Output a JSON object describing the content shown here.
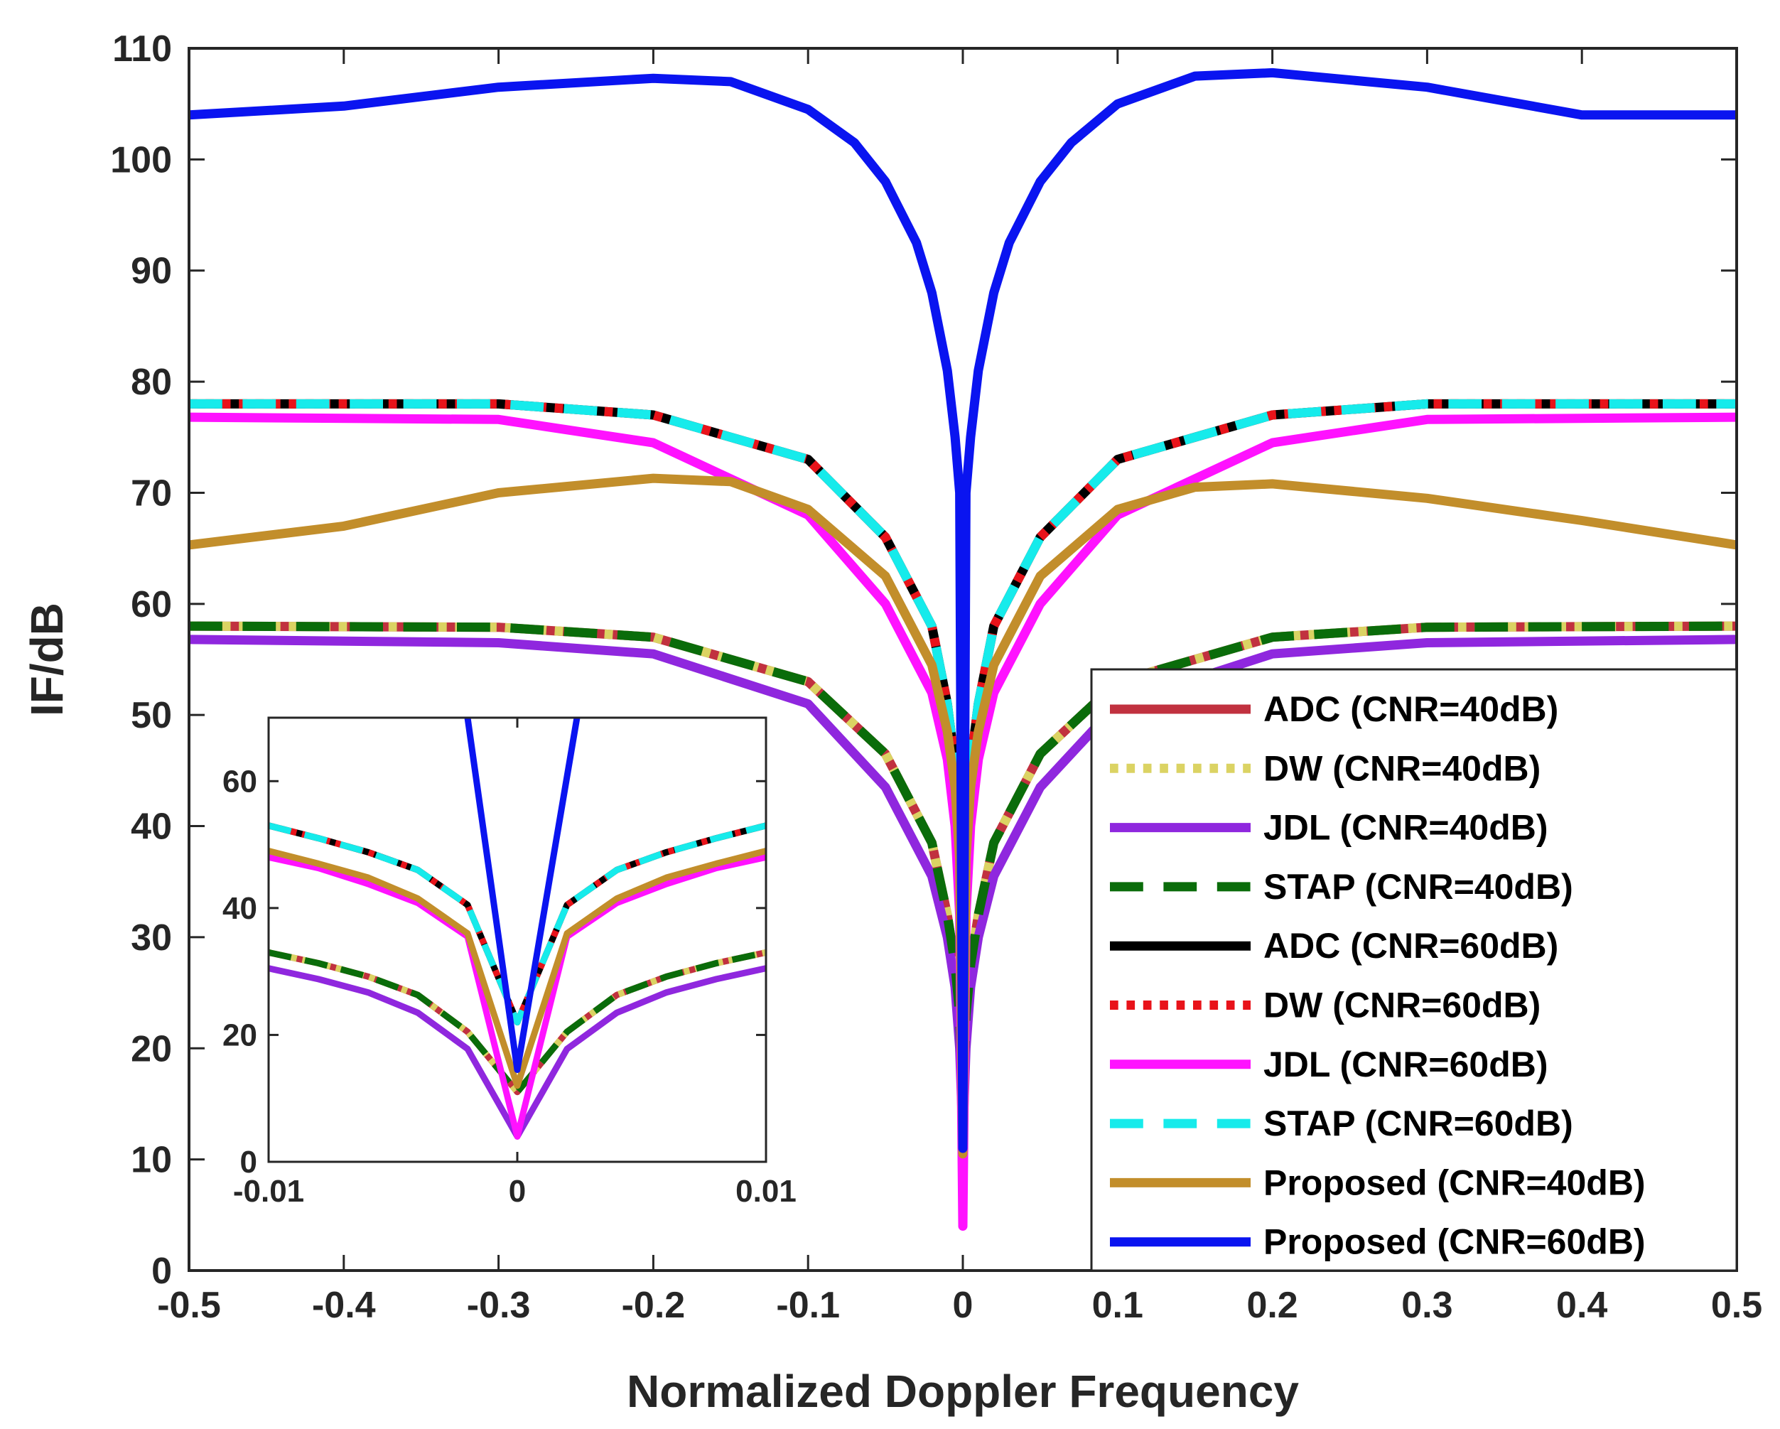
{
  "chart_data": [
    {
      "type": "line",
      "role": "main",
      "xlabel": "Normalized Doppler Frequency",
      "ylabel": "IF/dB",
      "xlim": [
        -0.5,
        0.5
      ],
      "ylim": [
        0,
        110
      ],
      "xticks": [
        -0.5,
        -0.4,
        -0.3,
        -0.2,
        -0.1,
        0,
        0.1,
        0.2,
        0.3,
        0.4,
        0.5
      ],
      "xtick_labels": [
        "-0.5",
        "-0.4",
        "-0.3",
        "-0.2",
        "-0.1",
        "0",
        "0.1",
        "0.2",
        "0.3",
        "0.4",
        "0.5"
      ],
      "yticks": [
        0,
        10,
        20,
        30,
        40,
        50,
        60,
        70,
        80,
        90,
        100,
        110
      ],
      "ytick_labels": [
        "0",
        "10",
        "20",
        "30",
        "40",
        "50",
        "60",
        "70",
        "80",
        "90",
        "100",
        "110"
      ],
      "legend_position": "bottom-right",
      "series": [
        {
          "name": "ADC (CNR=40dB)",
          "color": "#c1313f",
          "dash": "solid",
          "x": [
            -0.5,
            -0.3,
            -0.2,
            -0.1,
            -0.05,
            -0.02,
            -0.01,
            -0.005,
            -0.002,
            0,
            0.002,
            0.005,
            0.01,
            0.02,
            0.05,
            0.1,
            0.2,
            0.3,
            0.5
          ],
          "y": [
            58,
            57.9,
            57,
            53,
            46.5,
            38.5,
            32,
            27.5,
            23,
            15,
            23,
            27.5,
            32,
            38.5,
            46.5,
            53,
            57,
            57.9,
            58
          ]
        },
        {
          "name": "DW (CNR=40dB)",
          "color": "#dbd363",
          "dash": "dot",
          "x": [
            -0.5,
            -0.3,
            -0.2,
            -0.1,
            -0.05,
            -0.02,
            -0.01,
            -0.005,
            -0.002,
            0,
            0.002,
            0.005,
            0.01,
            0.02,
            0.05,
            0.1,
            0.2,
            0.3,
            0.5
          ],
          "y": [
            58,
            57.9,
            57,
            53,
            46.5,
            38.5,
            32,
            27.5,
            23,
            15,
            23,
            27.5,
            32,
            38.5,
            46.5,
            53,
            57,
            57.9,
            58
          ]
        },
        {
          "name": "JDL (CNR=40dB)",
          "color": "#8f27de",
          "dash": "solid",
          "x": [
            -0.5,
            -0.3,
            -0.2,
            -0.1,
            -0.05,
            -0.02,
            -0.01,
            -0.005,
            -0.002,
            0,
            0.002,
            0.005,
            0.01,
            0.02,
            0.05,
            0.1,
            0.2,
            0.3,
            0.5
          ],
          "y": [
            56.8,
            56.5,
            55.5,
            51,
            43.5,
            35.5,
            30,
            25.5,
            20,
            12,
            20,
            25.5,
            30,
            35.5,
            43.5,
            51,
            55.5,
            56.5,
            56.8
          ]
        },
        {
          "name": "STAP (CNR=40dB)",
          "color": "#0a6c0a",
          "dash": "dash",
          "x": [
            -0.5,
            -0.3,
            -0.2,
            -0.1,
            -0.05,
            -0.02,
            -0.01,
            -0.005,
            -0.002,
            0,
            0.002,
            0.005,
            0.01,
            0.02,
            0.05,
            0.1,
            0.2,
            0.3,
            0.5
          ],
          "y": [
            58,
            57.9,
            57,
            53,
            46.5,
            38.5,
            32,
            27.5,
            23,
            15,
            23,
            27.5,
            32,
            38.5,
            46.5,
            53,
            57,
            57.9,
            58
          ]
        },
        {
          "name": "ADC (CNR=60dB)",
          "color": "#000000",
          "dash": "solid",
          "x": [
            -0.5,
            -0.3,
            -0.2,
            -0.1,
            -0.05,
            -0.02,
            -0.01,
            -0.005,
            -0.002,
            0,
            0.002,
            0.005,
            0.01,
            0.02,
            0.05,
            0.1,
            0.2,
            0.3,
            0.5
          ],
          "y": [
            78,
            78,
            77,
            73,
            66,
            58,
            51,
            45.5,
            40,
            24,
            40,
            45.5,
            51,
            58,
            66,
            73,
            77,
            78,
            78
          ]
        },
        {
          "name": "DW (CNR=60dB)",
          "color": "#e8131a",
          "dash": "dot",
          "x": [
            -0.5,
            -0.3,
            -0.2,
            -0.1,
            -0.05,
            -0.02,
            -0.01,
            -0.005,
            -0.002,
            0,
            0.002,
            0.005,
            0.01,
            0.02,
            0.05,
            0.1,
            0.2,
            0.3,
            0.5
          ],
          "y": [
            78,
            78,
            77,
            73,
            66,
            58,
            51,
            45.5,
            40,
            24,
            40,
            45.5,
            51,
            58,
            66,
            73,
            77,
            78,
            78
          ]
        },
        {
          "name": "JDL (CNR=60dB)",
          "color": "#ff12ff",
          "dash": "solid",
          "x": [
            -0.5,
            -0.3,
            -0.2,
            -0.1,
            -0.05,
            -0.02,
            -0.01,
            -0.005,
            -0.002,
            0,
            0.002,
            0.005,
            0.01,
            0.02,
            0.05,
            0.1,
            0.2,
            0.3,
            0.5
          ],
          "y": [
            76.8,
            76.6,
            74.5,
            68,
            60,
            52,
            46,
            40,
            32,
            4,
            32,
            40,
            46,
            52,
            60,
            68,
            74.5,
            76.6,
            76.8
          ]
        },
        {
          "name": "STAP (CNR=60dB)",
          "color": "#16ebeb",
          "dash": "dash",
          "x": [
            -0.5,
            -0.3,
            -0.2,
            -0.1,
            -0.05,
            -0.02,
            -0.01,
            -0.005,
            -0.002,
            0,
            0.002,
            0.005,
            0.01,
            0.02,
            0.05,
            0.1,
            0.2,
            0.3,
            0.5
          ],
          "y": [
            78,
            78,
            77,
            73,
            66,
            58,
            51,
            45.5,
            40,
            24,
            40,
            45.5,
            51,
            58,
            66,
            73,
            77,
            78,
            78
          ]
        },
        {
          "name": "Proposed (CNR=40dB)",
          "color": "#c28e2b",
          "dash": "solid",
          "x": [
            -0.5,
            -0.4,
            -0.3,
            -0.2,
            -0.15,
            -0.1,
            -0.05,
            -0.02,
            -0.01,
            -0.005,
            -0.002,
            0,
            0.002,
            0.005,
            0.01,
            0.02,
            0.05,
            0.1,
            0.15,
            0.2,
            0.3,
            0.4,
            0.5
          ],
          "y": [
            65.3,
            67,
            70,
            71.3,
            71,
            68.5,
            62.5,
            54.5,
            48.5,
            43.5,
            37,
            10.5,
            37,
            43.5,
            48.5,
            54.5,
            62.5,
            68.5,
            70.5,
            70.8,
            69.5,
            67.5,
            65.3
          ]
        },
        {
          "name": "Proposed (CNR=60dB)",
          "color": "#0a14f0",
          "dash": "solid",
          "x": [
            -0.5,
            -0.4,
            -0.3,
            -0.2,
            -0.15,
            -0.1,
            -0.07,
            -0.05,
            -0.03,
            -0.02,
            -0.01,
            -0.005,
            -0.002,
            0,
            0.002,
            0.005,
            0.01,
            0.02,
            0.03,
            0.05,
            0.07,
            0.1,
            0.15,
            0.2,
            0.3,
            0.4,
            0.5
          ],
          "y": [
            104,
            104.8,
            106.5,
            107.3,
            107,
            104.5,
            101.5,
            98,
            92.5,
            88,
            81,
            75,
            70,
            11,
            70,
            75,
            81,
            88,
            92.5,
            98,
            101.5,
            105,
            107.5,
            107.8,
            106.5,
            104,
            104
          ]
        }
      ]
    },
    {
      "type": "line",
      "role": "inset",
      "xlim": [
        -0.01,
        0.01
      ],
      "ylim": [
        0,
        70
      ],
      "xticks": [
        -0.01,
        0,
        0.01
      ],
      "xtick_labels": [
        "-0.01",
        "0",
        "0.01"
      ],
      "yticks": [
        0,
        20,
        40,
        60
      ],
      "ytick_labels": [
        "0",
        "20",
        "40",
        "60"
      ],
      "series": [
        {
          "name": "ADC (CNR=40dB)",
          "x": [
            -0.01,
            -0.008,
            -0.006,
            -0.004,
            -0.002,
            0,
            0.002,
            0.004,
            0.006,
            0.008,
            0.01
          ],
          "y": [
            33,
            31.3,
            29.2,
            26.3,
            20.5,
            11,
            20.5,
            26.3,
            29.2,
            31.3,
            33
          ]
        },
        {
          "name": "DW (CNR=40dB)",
          "x": [
            -0.01,
            -0.008,
            -0.006,
            -0.004,
            -0.002,
            0,
            0.002,
            0.004,
            0.006,
            0.008,
            0.01
          ],
          "y": [
            33,
            31.3,
            29.2,
            26.3,
            20.5,
            11,
            20.5,
            26.3,
            29.2,
            31.3,
            33
          ]
        },
        {
          "name": "JDL (CNR=40dB)",
          "x": [
            -0.01,
            -0.008,
            -0.006,
            -0.004,
            -0.002,
            0,
            0.002,
            0.004,
            0.006,
            0.008,
            0.01
          ],
          "y": [
            30.5,
            28.8,
            26.7,
            23.5,
            17.8,
            4,
            17.8,
            23.5,
            26.7,
            28.8,
            30.5
          ]
        },
        {
          "name": "STAP (CNR=40dB)",
          "x": [
            -0.01,
            -0.008,
            -0.006,
            -0.004,
            -0.002,
            0,
            0.002,
            0.004,
            0.006,
            0.008,
            0.01
          ],
          "y": [
            33,
            31.3,
            29.2,
            26.3,
            20.5,
            11,
            20.5,
            26.3,
            29.2,
            31.3,
            33
          ]
        },
        {
          "name": "ADC (CNR=60dB)",
          "x": [
            -0.01,
            -0.008,
            -0.006,
            -0.004,
            -0.002,
            0,
            0.002,
            0.004,
            0.006,
            0.008,
            0.01
          ],
          "y": [
            53,
            51,
            48.8,
            46,
            40.5,
            22,
            40.5,
            46,
            48.8,
            51,
            53
          ]
        },
        {
          "name": "DW (CNR=60dB)",
          "x": [
            -0.01,
            -0.008,
            -0.006,
            -0.004,
            -0.002,
            0,
            0.002,
            0.004,
            0.006,
            0.008,
            0.01
          ],
          "y": [
            53,
            51,
            48.8,
            46,
            40.5,
            22,
            40.5,
            46,
            48.8,
            51,
            53
          ]
        },
        {
          "name": "JDL (CNR=60dB)",
          "x": [
            -0.01,
            -0.008,
            -0.006,
            -0.004,
            -0.002,
            0,
            0.002,
            0.004,
            0.006,
            0.008,
            0.01
          ],
          "y": [
            48,
            46.3,
            43.8,
            40.8,
            35.5,
            4,
            35.5,
            40.8,
            43.8,
            46.3,
            48
          ]
        },
        {
          "name": "STAP (CNR=60dB)",
          "x": [
            -0.01,
            -0.008,
            -0.006,
            -0.004,
            -0.002,
            0,
            0.002,
            0.004,
            0.006,
            0.008,
            0.01
          ],
          "y": [
            53,
            51,
            48.8,
            46,
            40.5,
            22,
            40.5,
            46,
            48.8,
            51,
            53
          ]
        },
        {
          "name": "Proposed (CNR=40dB)",
          "x": [
            -0.01,
            -0.008,
            -0.006,
            -0.004,
            -0.002,
            0,
            0.002,
            0.004,
            0.006,
            0.008,
            0.01
          ],
          "y": [
            49,
            47,
            44.8,
            41.5,
            36,
            12,
            36,
            41.5,
            44.8,
            47,
            49
          ]
        },
        {
          "name": "Proposed (CNR=60dB)",
          "x": [
            -0.002,
            0,
            0.0024
          ],
          "y": [
            70,
            14.5,
            70
          ]
        }
      ]
    }
  ]
}
